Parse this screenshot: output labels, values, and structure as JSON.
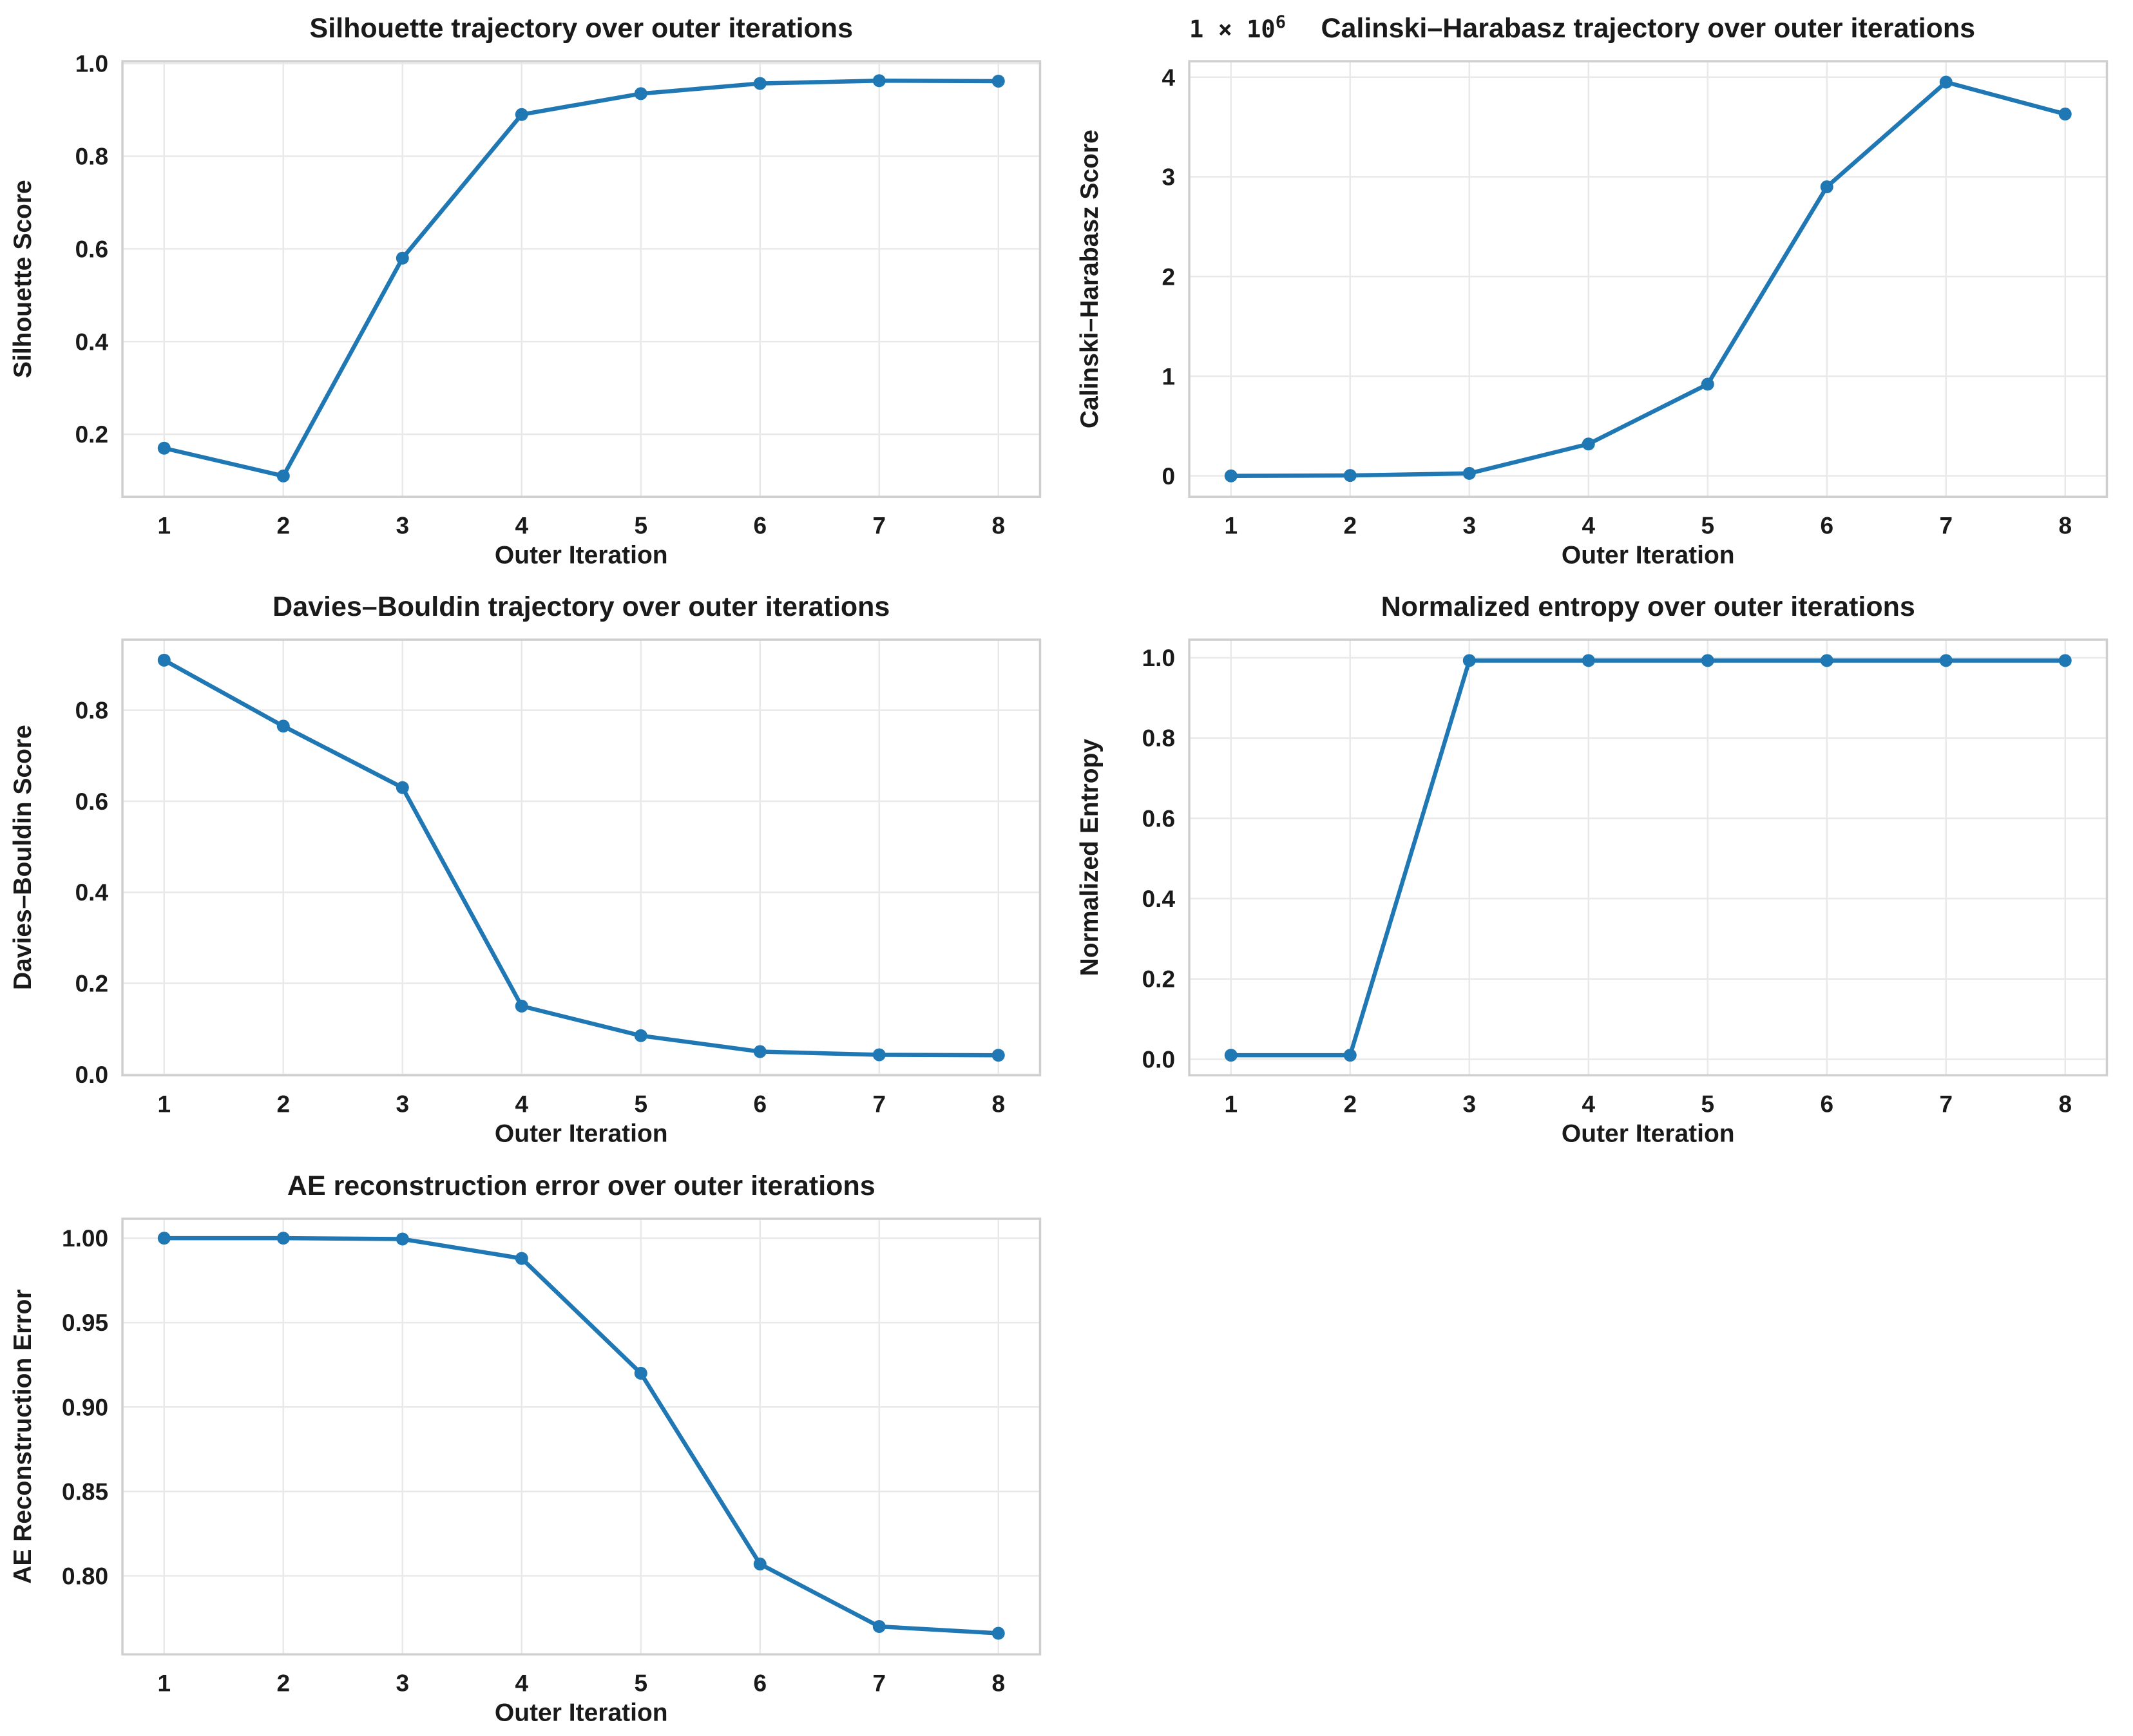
{
  "figure": {
    "background": "#ffffff"
  },
  "style": {
    "line_color": "#1f77b4",
    "marker_color": "#1f77b4",
    "grid_color": "#e9e9e9",
    "spine_color": "#cfcfcf",
    "text_color": "#1a1a1a",
    "plot_background": "#ffffff"
  },
  "chart_data": [
    {
      "id": "silhouette",
      "type": "line",
      "title": "Silhouette trajectory over outer iterations",
      "xlabel": "Outer Iteration",
      "ylabel": "Silhouette Score",
      "x": [
        1,
        2,
        3,
        4,
        5,
        6,
        7,
        8
      ],
      "y": [
        0.17,
        0.11,
        0.58,
        0.89,
        0.935,
        0.957,
        0.963,
        0.962
      ],
      "xlim": [
        0.65,
        8.35
      ],
      "ylim": [
        0.065,
        1.005
      ],
      "xticks": [
        1,
        2,
        3,
        4,
        5,
        6,
        7,
        8
      ],
      "xtick_labels": [
        "1",
        "2",
        "3",
        "4",
        "5",
        "6",
        "7",
        "8"
      ],
      "yticks": [
        0.2,
        0.4,
        0.6,
        0.8,
        1.0
      ],
      "ytick_labels": [
        "0.2",
        "0.4",
        "0.6",
        "0.8",
        "1.0"
      ],
      "grid": true,
      "legend": null,
      "offset_text": null
    },
    {
      "id": "calinski-harabasz",
      "type": "line",
      "title": "Calinski–Harabasz trajectory over outer iterations",
      "xlabel": "Outer Iteration",
      "ylabel": "Calinski–Harabasz Score",
      "x": [
        1,
        2,
        3,
        4,
        5,
        6,
        7,
        8
      ],
      "y": [
        0.0,
        0.004,
        0.025,
        0.32,
        0.92,
        2.9,
        3.95,
        3.63
      ],
      "xlim": [
        0.65,
        8.35
      ],
      "ylim": [
        -0.21,
        4.16
      ],
      "xticks": [
        1,
        2,
        3,
        4,
        5,
        6,
        7,
        8
      ],
      "xtick_labels": [
        "1",
        "2",
        "3",
        "4",
        "5",
        "6",
        "7",
        "8"
      ],
      "yticks": [
        0,
        1,
        2,
        3,
        4
      ],
      "ytick_labels": [
        "0",
        "1",
        "2",
        "3",
        "4"
      ],
      "grid": true,
      "legend": null,
      "offset_text": {
        "base": "1 × 10",
        "exp": "6"
      }
    },
    {
      "id": "davies-bouldin",
      "type": "line",
      "title": "Davies–Bouldin trajectory over outer iterations",
      "xlabel": "Outer Iteration",
      "ylabel": "Davies–Bouldin Score",
      "x": [
        1,
        2,
        3,
        4,
        5,
        6,
        7,
        8
      ],
      "y": [
        0.91,
        0.765,
        0.63,
        0.15,
        0.085,
        0.05,
        0.043,
        0.042
      ],
      "xlim": [
        0.65,
        8.35
      ],
      "ylim": [
        -0.002,
        0.955
      ],
      "xticks": [
        1,
        2,
        3,
        4,
        5,
        6,
        7,
        8
      ],
      "xtick_labels": [
        "1",
        "2",
        "3",
        "4",
        "5",
        "6",
        "7",
        "8"
      ],
      "yticks": [
        0.0,
        0.2,
        0.4,
        0.6,
        0.8
      ],
      "ytick_labels": [
        "0.0",
        "0.2",
        "0.4",
        "0.6",
        "0.8"
      ],
      "grid": true,
      "legend": null,
      "offset_text": null
    },
    {
      "id": "normalized-entropy",
      "type": "line",
      "title": "Normalized entropy over outer iterations",
      "xlabel": "Outer Iteration",
      "ylabel": "Normalized Entropy",
      "x": [
        1,
        2,
        3,
        4,
        5,
        6,
        7,
        8
      ],
      "y": [
        0.01,
        0.01,
        0.993,
        0.993,
        0.993,
        0.993,
        0.993,
        0.993
      ],
      "xlim": [
        0.65,
        8.35
      ],
      "ylim": [
        -0.04,
        1.045
      ],
      "xticks": [
        1,
        2,
        3,
        4,
        5,
        6,
        7,
        8
      ],
      "xtick_labels": [
        "1",
        "2",
        "3",
        "4",
        "5",
        "6",
        "7",
        "8"
      ],
      "yticks": [
        0.0,
        0.2,
        0.4,
        0.6,
        0.8,
        1.0
      ],
      "ytick_labels": [
        "0.0",
        "0.2",
        "0.4",
        "0.6",
        "0.8",
        "1.0"
      ],
      "grid": true,
      "legend": null,
      "offset_text": null
    },
    {
      "id": "ae-reconstruction-error",
      "type": "line",
      "title": "AE reconstruction error over outer iterations",
      "xlabel": "Outer Iteration",
      "ylabel": "AE Reconstruction Error",
      "x": [
        1,
        2,
        3,
        4,
        5,
        6,
        7,
        8
      ],
      "y": [
        1.0,
        1.0,
        0.9995,
        0.988,
        0.92,
        0.807,
        0.77,
        0.766
      ],
      "xlim": [
        0.65,
        8.35
      ],
      "ylim": [
        0.7535,
        1.0115
      ],
      "xticks": [
        1,
        2,
        3,
        4,
        5,
        6,
        7,
        8
      ],
      "xtick_labels": [
        "1",
        "2",
        "3",
        "4",
        "5",
        "6",
        "7",
        "8"
      ],
      "yticks": [
        0.8,
        0.85,
        0.9,
        0.95,
        1.0
      ],
      "ytick_labels": [
        "0.80",
        "0.85",
        "0.90",
        "0.95",
        "1.00"
      ],
      "grid": true,
      "legend": null,
      "offset_text": null
    }
  ]
}
